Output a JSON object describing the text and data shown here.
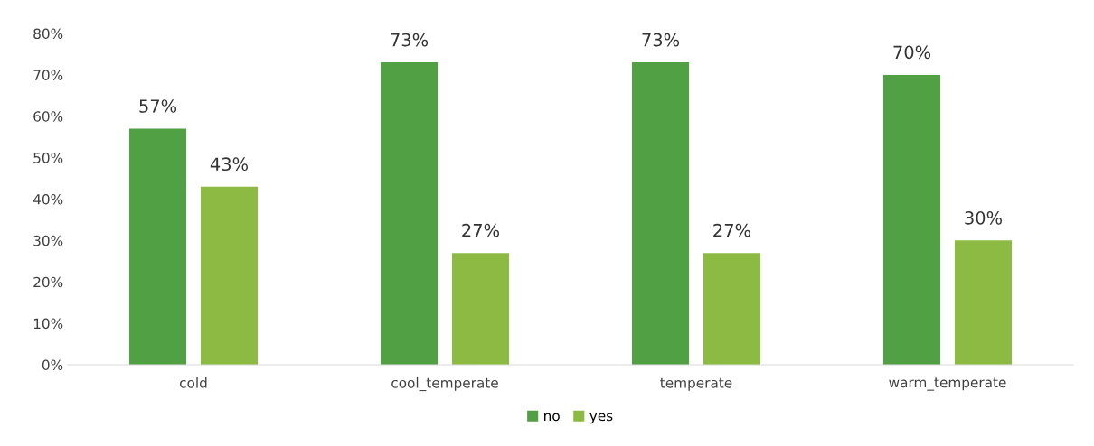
{
  "chart_data": {
    "type": "bar",
    "categories": [
      "cold",
      "cool_temperate",
      "temperate",
      "warm_temperate"
    ],
    "series": [
      {
        "name": "no",
        "color": "#52a044",
        "values": [
          57,
          73,
          73,
          70
        ],
        "value_labels": [
          "57%",
          "73%",
          "73%",
          "70%"
        ]
      },
      {
        "name": "yes",
        "color": "#8cba42",
        "values": [
          43,
          27,
          27,
          30
        ],
        "value_labels": [
          "43%",
          "27%",
          "27%",
          "30%"
        ]
      }
    ],
    "ylim": [
      0,
      80
    ],
    "yticks": [
      {
        "value": 0,
        "label": "0%"
      },
      {
        "value": 10,
        "label": "10%"
      },
      {
        "value": 20,
        "label": "20%"
      },
      {
        "value": 30,
        "label": "30%"
      },
      {
        "value": 40,
        "label": "40%"
      },
      {
        "value": 50,
        "label": "50%"
      },
      {
        "value": 60,
        "label": "60%"
      },
      {
        "value": 70,
        "label": "70%"
      },
      {
        "value": 80,
        "label": "80%"
      }
    ],
    "grid": false,
    "legend": "bottom"
  }
}
